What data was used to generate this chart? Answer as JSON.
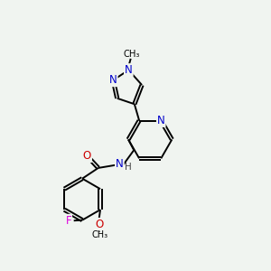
{
  "background_color": "#f0f4f0",
  "bond_color": "#000000",
  "atom_colors": {
    "N": "#0000cc",
    "O": "#cc0000",
    "F": "#dd00dd",
    "C": "#000000",
    "H": "#444444"
  },
  "lw": 1.4,
  "doff": 0.055
}
